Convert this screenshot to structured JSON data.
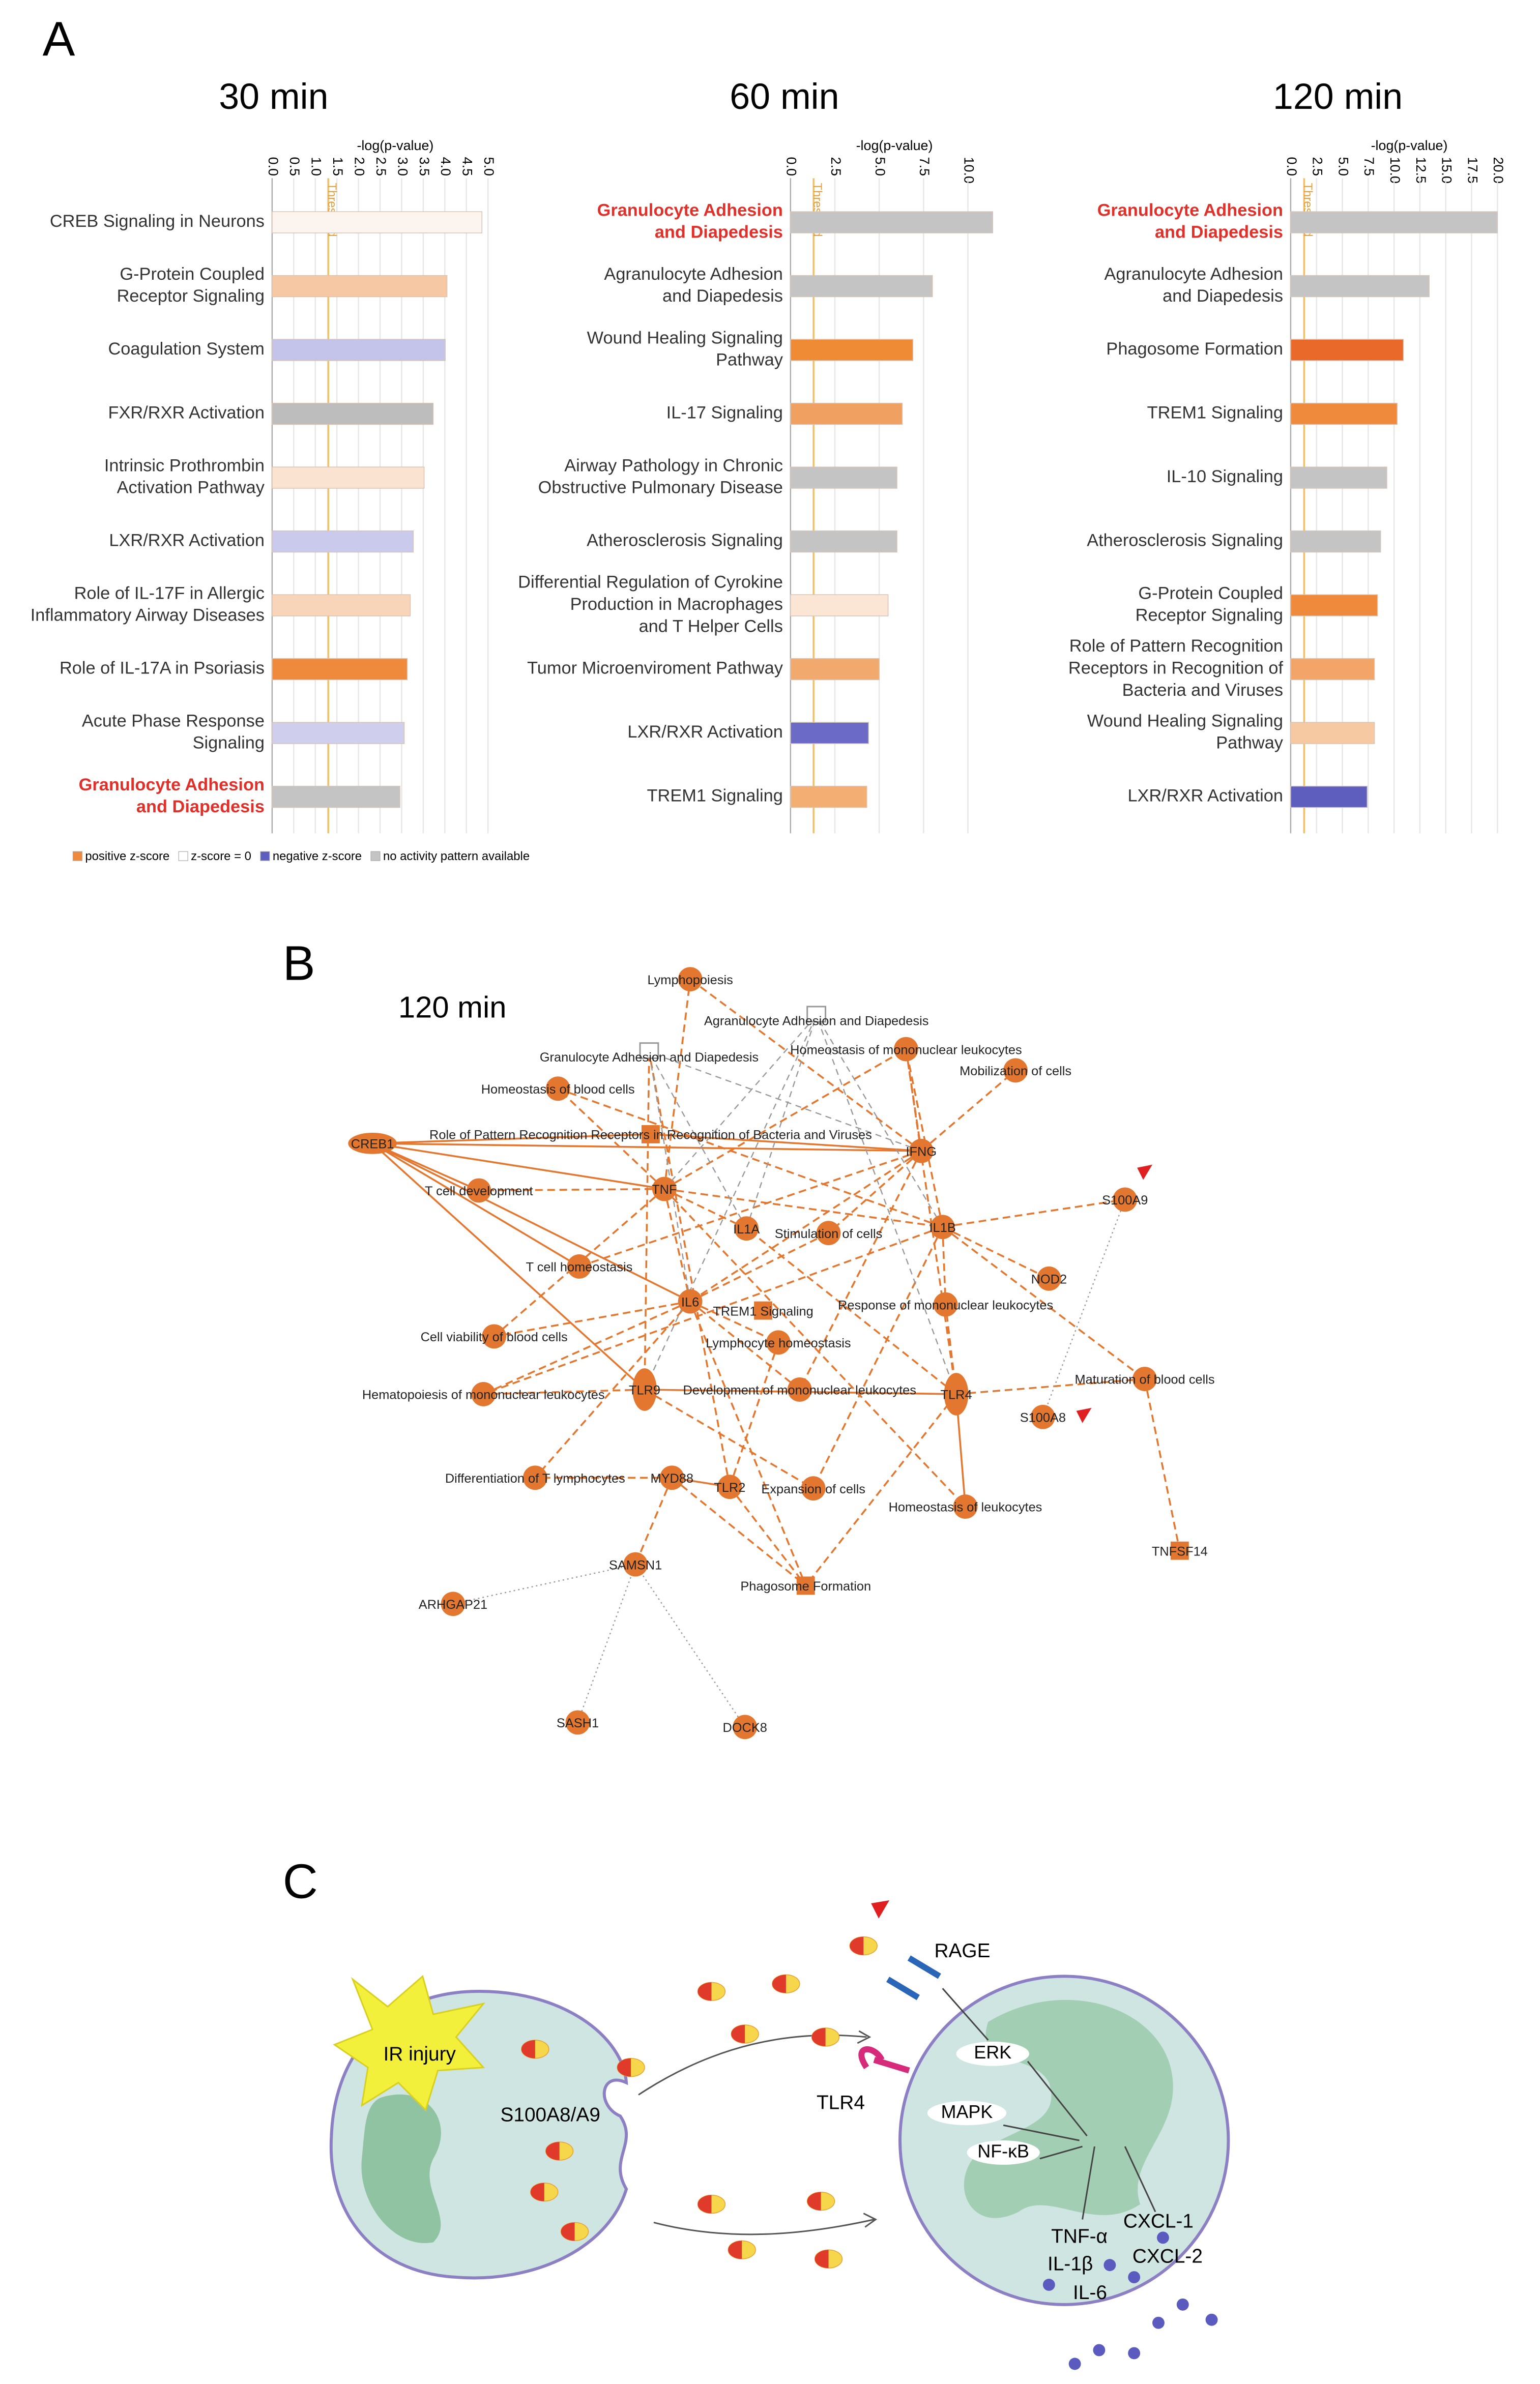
{
  "panel_labels": [
    "A",
    "B",
    "C"
  ],
  "chart_data": [
    {
      "type": "hbar",
      "title": "30 min",
      "xlabel": "-log(p-value)",
      "xlim": [
        0,
        5
      ],
      "xticks": [
        {
          "value": 0,
          "label": "0.0"
        },
        0.5,
        {
          "value": 1,
          "label": "1.0"
        },
        1.5,
        {
          "value": 2,
          "label": "2.0"
        },
        2.5,
        {
          "value": 3,
          "label": "3.0"
        },
        3.5,
        {
          "value": 4,
          "label": "4.0"
        },
        4.5,
        {
          "value": 5,
          "label": "5.0"
        }
      ],
      "threshold": 1.3,
      "threshold_label": "Threshold",
      "grid": true,
      "highlight": [
        9
      ],
      "highlight_color": "#e0302a",
      "categories": [
        "CREB Signaling in Neurons",
        "G-Protein Coupled\nReceptor Signaling",
        "Coagulation System",
        "FXR/RXR Activation",
        "Intrinsic Prothrombin\nActivation Pathway",
        "LXR/RXR Activation",
        "Role of IL-17F in Allergic\nInflammatory Airway Diseases",
        "Role of IL-17A in Psoriasis",
        "Acute Phase Response\nSignaling",
        "Granulocyte Adhesion\nand Diapedesis"
      ],
      "values": [
        4.86,
        4.05,
        4.01,
        3.73,
        3.52,
        3.27,
        3.2,
        3.13,
        3.06,
        2.96
      ],
      "colors": [
        "#fcf4ee",
        "#f6c8a4",
        "#c4c4ea",
        "#bdbdbd",
        "#fbe3d1",
        "#cacaed",
        "#f8d4b8",
        "#ef8a3c",
        "#cfcfed",
        "#c4c4c4"
      ]
    },
    {
      "type": "hbar",
      "title": "60 min",
      "xlabel": "-log(p-value)",
      "xlim": [
        0,
        12
      ],
      "xticks": [
        {
          "value": 0,
          "label": "0.0"
        },
        2.5,
        {
          "value": 5,
          "label": "5.0"
        },
        7.5,
        {
          "value": 10,
          "label": "10.0"
        }
      ],
      "threshold": 1.3,
      "threshold_label": "Threshold",
      "grid": true,
      "highlight": [
        0
      ],
      "highlight_color": "#e0302a",
      "categories": [
        "Granulocyte Adhesion\nand Diapedesis",
        "Agranulocyte Adhesion\nand Diapedesis",
        "Wound Healing Signaling\nPathway",
        "IL-17 Signaling",
        "Airway Pathology in Chronic\nObstructive Pulmonary Disease",
        "Atherosclerosis Signaling",
        "Differential Regulation of Cyrokine\nProduction in Macrophages\nand T Helper Cells",
        "Tumor Microenviroment Pathway",
        "LXR/RXR Activation",
        "TREM1 Signaling"
      ],
      "values": [
        11.4,
        8.0,
        6.9,
        6.3,
        6.0,
        6.0,
        5.5,
        5.0,
        4.4,
        4.3
      ],
      "colors": [
        "#c4c4c4",
        "#c4c4c4",
        "#ef8a35",
        "#f0a061",
        "#c4c4c4",
        "#c4c4c4",
        "#fbe6d6",
        "#f2a96e",
        "#6b6bc7",
        "#f3ae74"
      ]
    },
    {
      "type": "hbar",
      "title": "120 min",
      "xlabel": "-log(p-value)",
      "xlim": [
        0,
        20
      ],
      "xticks": [
        {
          "value": 0,
          "label": "0.0"
        },
        2.5,
        {
          "value": 5,
          "label": "5.0"
        },
        7.5,
        {
          "value": 10,
          "label": "10.0"
        },
        12.5,
        {
          "value": 15,
          "label": "15.0"
        },
        17.5,
        {
          "value": 20,
          "label": "20.0"
        }
      ],
      "threshold": 1.3,
      "threshold_label": "Threshold",
      "grid": true,
      "highlight": [
        0
      ],
      "highlight_color": "#e0302a",
      "categories": [
        "Granulocyte Adhesion\nand Diapedesis",
        "Agranulocyte Adhesion\nand Diapedesis",
        "Phagosome Formation",
        "TREM1 Signaling",
        "IL-10 Signaling",
        "Atherosclerosis Signaling",
        "G-Protein Coupled\nReceptor Signaling",
        "Role of Pattern Recognition\nReceptors in Recognition of\nBacteria and Viruses",
        "Wound Healing Signaling\nPathway",
        "LXR/RXR Activation"
      ],
      "values": [
        20.0,
        13.4,
        10.9,
        10.3,
        9.3,
        8.7,
        8.4,
        8.1,
        8.1,
        7.4
      ],
      "colors": [
        "#c4c4c4",
        "#c4c4c4",
        "#e8692a",
        "#ef8a3c",
        "#c4c4c4",
        "#c4c4c4",
        "#ef8a3c",
        "#f2a469",
        "#f7c9a3",
        "#5e5ebf"
      ]
    }
  ],
  "legend": [
    {
      "name": "positive z-score",
      "color": "#ef8a3c"
    },
    {
      "name": "z-score = 0",
      "color": "#ffffff"
    },
    {
      "name": "negative z-score",
      "color": "#5e5ebf"
    },
    {
      "name": "no activity pattern available",
      "color": "#c4c4c4"
    }
  ],
  "network": {
    "title": "120 min",
    "nodes": [
      "Lymphopoiesis",
      "Agranulocyte Adhesion and Diapedesis",
      "Granulocyte Adhesion and Diapedesis",
      "Homeostasis of mononuclear leukocytes",
      "Mobilization of cells",
      "Homeostasis of blood cells",
      "CREB1",
      "Role of Pattern Recognition Receptors in Recognition of Bacteria and Viruses",
      "IFNG",
      "TNF",
      "T cell development",
      "S100A9",
      "IL1A",
      "Stimulation of cells",
      "IL1B",
      "T cell homeostasis",
      "NOD2",
      "IL6",
      "TREM1 Signaling",
      "Response of mononuclear leukocytes",
      "Lymphocyte homeostasis",
      "Cell viability of blood cells",
      "Hematopoiesis of mononuclear leukocytes",
      "TLR9",
      "Development of mononuclear leukocytes",
      "TLR4",
      "Maturation of blood cells",
      "S100A8",
      "Differentiation of T lymphocytes",
      "MYD88",
      "TLR2",
      "Expansion of cells",
      "Homeostasis of leukocytes",
      "TNFSF14",
      "SAMSN1",
      "Phagosome Formation",
      "ARHGAP21",
      "SASH1",
      "DOCK8"
    ]
  },
  "schematic": {
    "injury": "IR injury",
    "protein": "S100A8/A9",
    "receptors": [
      "RAGE",
      "TLR4"
    ],
    "pathways": [
      "ERK",
      "MAPK",
      "NF-κB"
    ],
    "cytokines": [
      "TNF-α",
      "IL-1β",
      "IL-6",
      "CXCL-1",
      "CXCL-2"
    ]
  }
}
